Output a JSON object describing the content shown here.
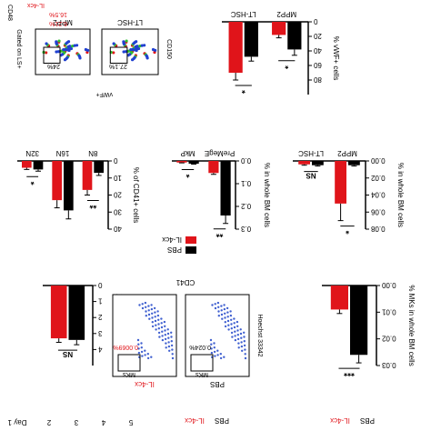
{
  "figure": {
    "orientation": "rotated 180 degrees",
    "flow": {
      "gating_text": "Gated on LS+",
      "panel_names": [
        "PBS",
        "MPP2",
        "LT-HSC"
      ],
      "panel_labels": [
        "PBS",
        "IL-4cx",
        "MPP2",
        "LT-HSC",
        "vWF+",
        "LT-HSC",
        "MPP2"
      ],
      "panel_percents": [
        "16.5%",
        "6.21%",
        "24%",
        "27.1%"
      ],
      "axis_labels": [
        "CD48",
        "CD150"
      ]
    },
    "mk_flow": {
      "title": "CD41",
      "ylabel": "Hoechst 33342",
      "panels": [
        {
          "name": "PBS",
          "gate_label": "MKs",
          "percent": "0.024%"
        },
        {
          "name": "IL-4cx",
          "gate_label": "MKs",
          "percent": "0.0069%"
        }
      ]
    },
    "legend": [
      {
        "name": "PBS",
        "color": "#000000"
      },
      {
        "name": "IL-4cx",
        "color": "#e0141a"
      }
    ],
    "bottom_strip": {
      "day_label": "Day 1",
      "days": [
        "2",
        "3",
        "4",
        "5"
      ],
      "group_labels": [
        "PBS",
        "IL-4cx",
        "PBS",
        "IL-4cx"
      ]
    }
  },
  "chart_data": [
    {
      "id": "vwf",
      "type": "bar",
      "ylabel": "% vWF+ cells",
      "categories": [
        "MPP2",
        "LT-HSC"
      ],
      "ylim": [
        0,
        100
      ],
      "yticks": [
        0,
        20,
        40,
        60,
        80
      ],
      "series": [
        {
          "name": "PBS",
          "values": [
            38,
            48
          ],
          "errors": [
            8,
            6
          ]
        },
        {
          "name": "IL-4cx",
          "values": [
            18,
            70
          ],
          "errors": [
            4,
            10
          ]
        }
      ],
      "significance": [
        "*",
        "*"
      ]
    },
    {
      "id": "ploidy",
      "type": "bar",
      "ylabel": "% of CD41+ cells",
      "categories": [
        "8N",
        "16N",
        "32N"
      ],
      "ylim": [
        0,
        40
      ],
      "yticks": [
        0,
        10,
        20,
        30,
        40
      ],
      "series": [
        {
          "name": "PBS",
          "values": [
            7,
            29,
            5
          ],
          "errors": [
            1.5,
            5,
            1
          ]
        },
        {
          "name": "IL-4cx",
          "values": [
            17,
            23,
            4
          ],
          "errors": [
            3,
            4.5,
            1
          ]
        }
      ],
      "significance": [
        "**",
        "",
        "*"
      ]
    },
    {
      "id": "premege",
      "type": "bar",
      "ylabel": "% in whole BM cells",
      "categories": [
        "PreMegE",
        "MkP"
      ],
      "ylim": [
        0,
        0.3
      ],
      "yticks": [
        0.0,
        0.1,
        0.2,
        0.3
      ],
      "series": [
        {
          "name": "PBS",
          "values": [
            0.24,
            0.012
          ],
          "errors": [
            0.035,
            0.002
          ]
        },
        {
          "name": "IL-4cx",
          "values": [
            0.053,
            0.007
          ],
          "errors": [
            0.006,
            0.0015
          ]
        }
      ],
      "significance": [
        "**",
        "*"
      ]
    },
    {
      "id": "mpp2_hsc",
      "type": "bar",
      "ylabel": "% in whole BM cells",
      "categories": [
        "MPP2",
        "LT-HSC"
      ],
      "ylim": [
        0,
        0.08
      ],
      "yticks": [
        0.0,
        0.02,
        0.04,
        0.06,
        0.08
      ],
      "series": [
        {
          "name": "PBS",
          "values": [
            0.005,
            0.005
          ],
          "errors": [
            0.001,
            0.001
          ]
        },
        {
          "name": "IL-4cx",
          "values": [
            0.05,
            0.004
          ],
          "errors": [
            0.02,
            0.001
          ]
        }
      ],
      "significance": [
        "*",
        "NS"
      ]
    },
    {
      "id": "cells_femur",
      "type": "bar",
      "ylabel": "X 10^7 cells / femur",
      "categories": [
        ""
      ],
      "ylim": [
        0,
        5
      ],
      "yticks": [
        0,
        1,
        2,
        3,
        4
      ],
      "series": [
        {
          "name": "PBS",
          "values": [
            3.4
          ],
          "errors": [
            0.3
          ]
        },
        {
          "name": "IL-4cx",
          "values": [
            3.3
          ],
          "errors": [
            0.25
          ]
        }
      ],
      "significance": [
        "NS"
      ]
    },
    {
      "id": "mks",
      "type": "bar",
      "ylabel": "% MKs in whole BM cells",
      "categories": [
        ""
      ],
      "ylim": [
        0,
        0.03
      ],
      "yticks": [
        0.0,
        0.01,
        0.02,
        0.03
      ],
      "series": [
        {
          "name": "PBS",
          "values": [
            0.026
          ],
          "errors": [
            0.003
          ]
        },
        {
          "name": "IL-4cx",
          "values": [
            0.009
          ],
          "errors": [
            0.0015
          ]
        }
      ],
      "significance": [
        "***"
      ]
    }
  ]
}
